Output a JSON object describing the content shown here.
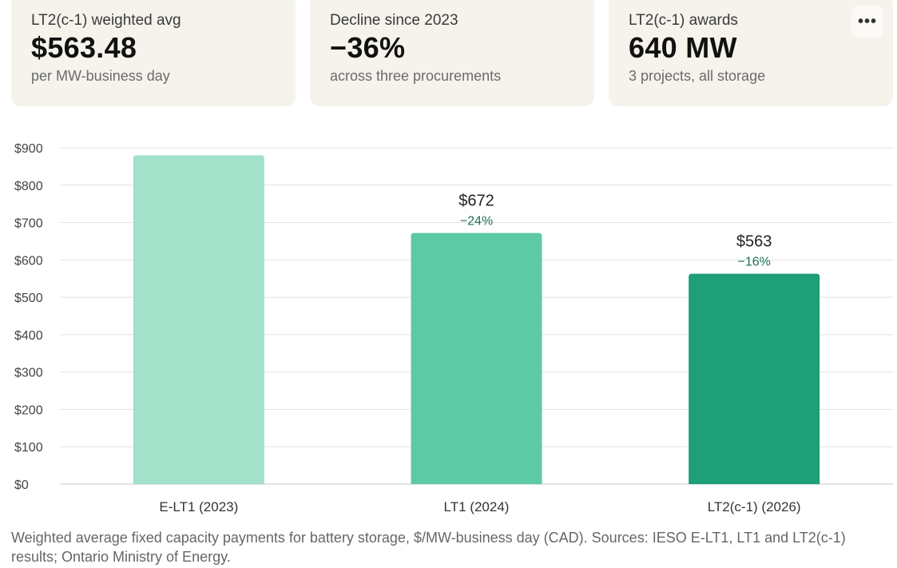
{
  "cards": [
    {
      "label": "LT2(c-1) weighted avg",
      "value": "$563.48",
      "sub": "per MW-business day"
    },
    {
      "label": "Decline since 2023",
      "value": "−36%",
      "sub": "across three procurements"
    },
    {
      "label": "LT2(c-1) awards",
      "value": "640 MW",
      "sub": "3 projects, all storage"
    }
  ],
  "more_button": {
    "glyph": "•••",
    "icon": "more-dots-icon"
  },
  "chart_data": {
    "type": "bar",
    "title": "",
    "xlabel": "",
    "ylabel": "",
    "categories": [
      "E-LT1 (2023)",
      "LT1 (2024)",
      "LT2(c-1) (2026)"
    ],
    "values": [
      880,
      672,
      563
    ],
    "value_labels": [
      "",
      "$672",
      "$563"
    ],
    "change_labels": [
      "",
      "−24%",
      "−16%"
    ],
    "colors": [
      "#a2e1ca",
      "#5ecaa5",
      "#1e9f78"
    ],
    "change_color": "#1e6f52",
    "ylim": [
      0,
      900
    ],
    "yticks": [
      0,
      100,
      200,
      300,
      400,
      500,
      600,
      700,
      800,
      900
    ],
    "ytick_labels": [
      "$0",
      "$100",
      "$200",
      "$300",
      "$400",
      "$500",
      "$600",
      "$700",
      "$800",
      "$900"
    ],
    "grid": true,
    "legend": "none"
  },
  "caption": "Weighted average fixed capacity payments for battery storage, $/MW-business day (CAD). Sources: IESO E-LT1, LT1 and LT2(c-1) results; Ontario Ministry of Energy."
}
